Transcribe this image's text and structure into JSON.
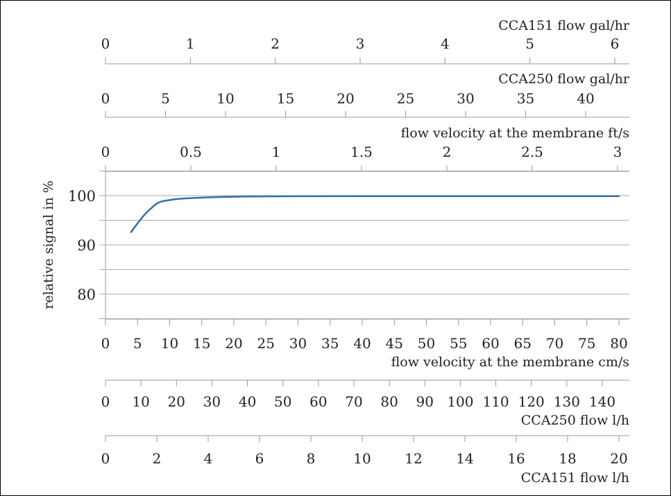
{
  "chart_data": {
    "type": "line",
    "ylabel": "relative signal in %",
    "ylim": [
      75,
      105
    ],
    "yticks": [
      80,
      90,
      100
    ],
    "ytick_labels": [
      "80",
      "90",
      "100"
    ],
    "grid": true,
    "series": [
      {
        "color": "#2f6fa8",
        "x": [
          4,
          4.5,
          5,
          5.5,
          6,
          6.5,
          7,
          7.5,
          8,
          8.5,
          9,
          10,
          11,
          12,
          14,
          16,
          18,
          20,
          22,
          25,
          30,
          40,
          50,
          60,
          70,
          80
        ],
        "y": [
          92.6,
          93.5,
          94.4,
          95.2,
          96.0,
          96.7,
          97.3,
          97.9,
          98.4,
          98.7,
          98.9,
          99.1,
          99.3,
          99.4,
          99.55,
          99.65,
          99.72,
          99.78,
          99.82,
          99.85,
          99.88,
          99.9,
          99.9,
          99.9,
          99.9,
          99.9
        ]
      }
    ],
    "bottom_axes": [
      {
        "id": "velocity_cms",
        "label": "flow velocity at the membrane cm/s",
        "ticks": [
          0,
          5,
          10,
          15,
          20,
          25,
          30,
          35,
          40,
          45,
          50,
          55,
          60,
          65,
          70,
          75,
          80
        ],
        "tick_labels": [
          "0",
          "5",
          "10",
          "15",
          "20",
          "25",
          "30",
          "35",
          "40",
          "45",
          "50",
          "55",
          "60",
          "65",
          "70",
          "75",
          "80"
        ]
      },
      {
        "id": "cca250_lh",
        "label": "CCA250 flow l/h",
        "ticks": [
          0,
          10,
          20,
          30,
          40,
          50,
          60,
          70,
          80,
          90,
          100,
          110,
          120,
          130,
          140
        ],
        "tick_labels": [
          "0",
          "10",
          "20",
          "30",
          "40",
          "50",
          "60",
          "70",
          "80",
          "90",
          "100",
          "110",
          "120",
          "130",
          "140"
        ]
      },
      {
        "id": "cca151_lh",
        "label": "CCA151 flow l/h",
        "ticks": [
          0,
          2,
          4,
          6,
          8,
          10,
          12,
          14,
          16,
          18,
          20
        ],
        "tick_labels": [
          "0",
          "2",
          "4",
          "6",
          "8",
          "10",
          "12",
          "14",
          "16",
          "18",
          "20"
        ]
      }
    ],
    "top_axes": [
      {
        "id": "cca151_galhr",
        "label": "CCA151 flow gal/hr",
        "ticks": [
          0,
          1,
          2,
          3,
          4,
          5,
          6
        ],
        "tick_labels": [
          "0",
          "1",
          "2",
          "3",
          "4",
          "5",
          "6"
        ]
      },
      {
        "id": "cca250_galhr",
        "label": "CCA250 flow gal/hr",
        "ticks": [
          0,
          5,
          10,
          15,
          20,
          25,
          30,
          35,
          40
        ],
        "tick_labels": [
          "0",
          "5",
          "10",
          "15",
          "20",
          "25",
          "30",
          "35",
          "40"
        ]
      },
      {
        "id": "velocity_fts",
        "label": "flow velocity at the membrane ft/s",
        "ticks": [
          0,
          0.5,
          1,
          1.5,
          2,
          2.5,
          3
        ],
        "tick_labels": [
          "0",
          "0.5",
          "1",
          "1.5",
          "2",
          "2.5",
          "3"
        ]
      }
    ]
  }
}
